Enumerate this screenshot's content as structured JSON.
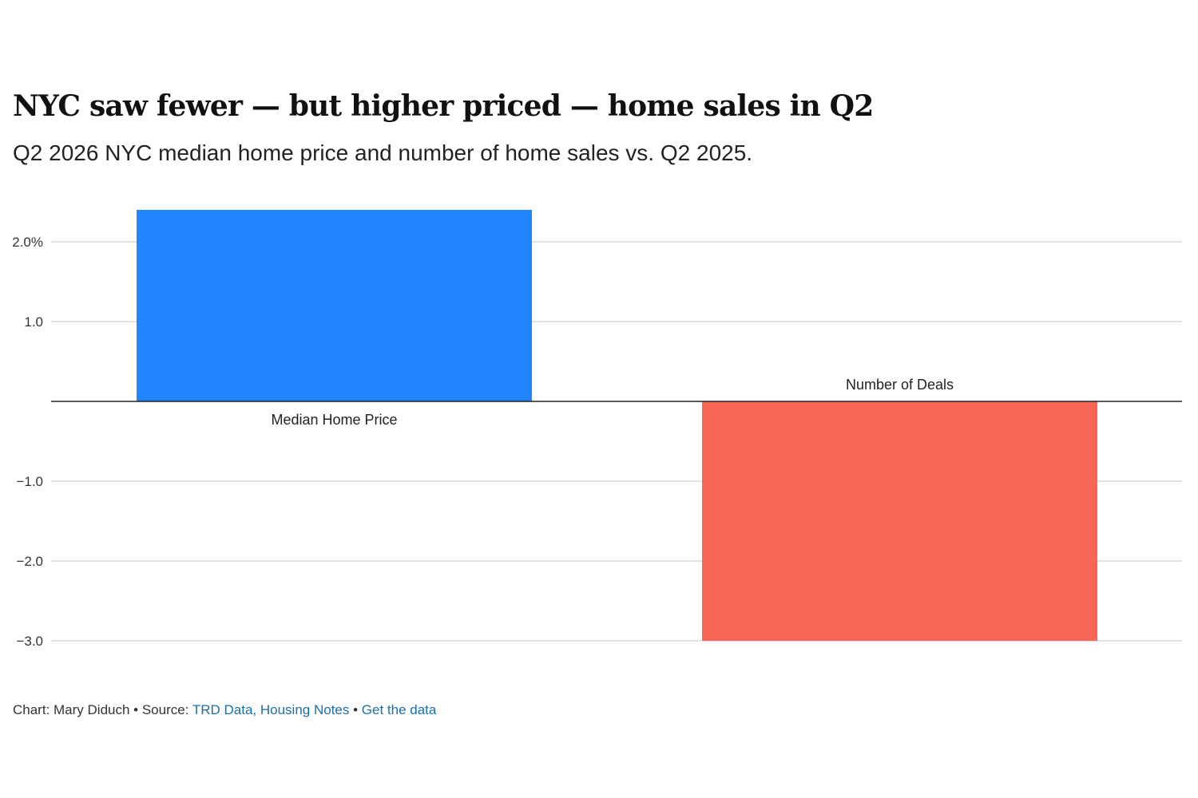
{
  "chart_data": {
    "type": "bar",
    "title": "NYC saw fewer — but higher priced — home sales in Q2",
    "subtitle": "Q2 2026 NYC median home price and number of home sales vs. Q2 2025.",
    "categories": [
      "Median Home Price",
      "Number of Deals"
    ],
    "values": [
      2.4,
      -3.0
    ],
    "colors": [
      "#2185ff",
      "#f76656"
    ],
    "ylim": [
      -3.0,
      2.4
    ],
    "yticks": [
      {
        "value": 2.0,
        "label": "2.0%"
      },
      {
        "value": 1.0,
        "label": "1.0"
      },
      {
        "value": -1.0,
        "label": "−1.0"
      },
      {
        "value": -2.0,
        "label": "−2.0"
      },
      {
        "value": -3.0,
        "label": "−3.0"
      }
    ],
    "grid": true,
    "legend": "none"
  },
  "footer": {
    "prefix": "Chart: Mary Diduch • Source: ",
    "source_link": "TRD Data, Housing Notes",
    "separator": " • ",
    "data_link": "Get the data"
  }
}
